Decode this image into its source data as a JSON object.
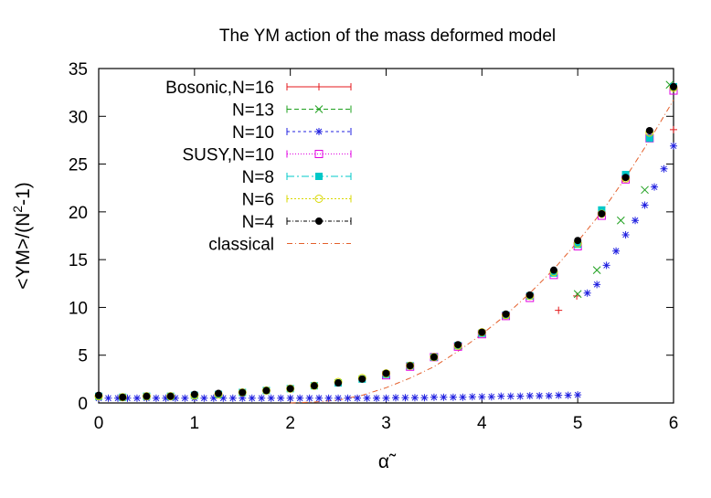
{
  "chart_data": {
    "type": "scatter",
    "title": "The YM action of the mass deformed model",
    "xlabel": "α̃",
    "ylabel_parts": {
      "main": "<YM>/(N",
      "sup": "2",
      "tail": "-1)"
    },
    "xlim": [
      0,
      6
    ],
    "ylim": [
      0,
      35
    ],
    "xticks": [
      "0",
      "1",
      "2",
      "3",
      "4",
      "5",
      "6"
    ],
    "yticks": [
      "0",
      "5",
      "10",
      "15",
      "20",
      "25",
      "30",
      "35"
    ],
    "grid": false,
    "legend_position": "top-left",
    "series": [
      {
        "name": "Bosonic,N=16",
        "color": "#e41a1c",
        "marker": "plus",
        "style": "points",
        "x": [
          4.8,
          4.99,
          6.0
        ],
        "y": [
          9.7,
          11.2,
          28.6
        ]
      },
      {
        "name": "N=13",
        "color": "#1ea01e",
        "marker": "cross",
        "style": "points",
        "x": [
          5.0,
          5.2,
          5.45,
          5.7,
          5.96
        ],
        "y": [
          11.4,
          13.9,
          19.1,
          22.3,
          33.3
        ]
      },
      {
        "name": "N=10",
        "color": "#2020e0",
        "marker": "star",
        "style": "points",
        "x": [
          0.0,
          0.1,
          0.2,
          0.3,
          0.4,
          0.5,
          0.6,
          0.7,
          0.8,
          0.9,
          1.0,
          1.1,
          1.2,
          1.3,
          1.4,
          1.5,
          1.6,
          1.7,
          1.8,
          1.9,
          2.0,
          2.1,
          2.2,
          2.3,
          2.4,
          2.5,
          2.6,
          2.7,
          2.8,
          2.9,
          3.0,
          3.1,
          3.2,
          3.3,
          3.4,
          3.5,
          3.6,
          3.7,
          3.8,
          3.9,
          4.0,
          4.1,
          4.2,
          4.3,
          4.4,
          4.5,
          4.6,
          4.7,
          4.8,
          4.9,
          5.0,
          5.1,
          5.2,
          5.3,
          5.4,
          5.5,
          5.6,
          5.7,
          5.8,
          5.9,
          6.0
        ],
        "y": [
          0.5,
          0.5,
          0.5,
          0.5,
          0.5,
          0.5,
          0.5,
          0.5,
          0.5,
          0.5,
          0.5,
          0.5,
          0.5,
          0.5,
          0.5,
          0.5,
          0.5,
          0.5,
          0.5,
          0.5,
          0.5,
          0.5,
          0.5,
          0.5,
          0.5,
          0.5,
          0.5,
          0.5,
          0.5,
          0.5,
          0.5,
          0.55,
          0.55,
          0.55,
          0.55,
          0.6,
          0.6,
          0.6,
          0.6,
          0.65,
          0.65,
          0.65,
          0.7,
          0.7,
          0.7,
          0.75,
          0.75,
          0.75,
          0.8,
          0.8,
          0.85,
          11.5,
          12.4,
          14.4,
          15.9,
          17.6,
          19.1,
          20.7,
          22.6,
          24.5,
          26.9
        ]
      },
      {
        "name": "SUSY,N=10",
        "color": "#e000e0",
        "marker": "square",
        "style": "points",
        "x": [
          3.0,
          3.25,
          3.5,
          3.75,
          4.0,
          4.25,
          4.5,
          4.75,
          5.0,
          5.25,
          5.5,
          5.75,
          6.0
        ],
        "y": [
          2.9,
          3.8,
          4.8,
          5.9,
          7.2,
          9.1,
          11.0,
          13.4,
          16.4,
          19.6,
          23.4,
          27.7,
          32.7
        ]
      },
      {
        "name": "N=8",
        "color": "#00c8c8",
        "marker": "filled-square",
        "style": "points",
        "x": [
          0.0,
          0.25,
          0.5,
          0.75,
          1.0,
          1.25,
          1.5,
          1.75,
          2.0,
          2.25,
          2.5,
          2.75,
          3.0,
          3.25,
          3.5,
          3.75,
          4.0,
          4.25,
          4.5,
          4.75,
          5.0,
          5.25,
          5.5,
          5.75,
          6.0
        ],
        "y": [
          0.7,
          0.6,
          0.7,
          0.7,
          0.8,
          0.9,
          1.1,
          1.3,
          1.5,
          1.8,
          2.1,
          2.5,
          3.0,
          3.9,
          4.8,
          6.0,
          7.3,
          9.2,
          11.2,
          13.6,
          16.6,
          20.2,
          23.9,
          27.7,
          33.1
        ]
      },
      {
        "name": "N=6",
        "color": "#d8d800",
        "marker": "circle",
        "style": "points",
        "x": [
          0.0,
          0.25,
          0.5,
          0.75,
          1.0,
          1.25,
          1.5,
          1.75,
          2.0,
          2.25,
          2.5,
          2.75,
          3.0,
          3.25,
          3.5,
          3.75,
          4.0,
          4.25,
          4.5,
          4.75,
          5.0,
          5.25,
          5.5,
          5.75,
          6.0
        ],
        "y": [
          0.7,
          0.6,
          0.7,
          0.7,
          0.8,
          0.9,
          1.1,
          1.3,
          1.5,
          1.8,
          2.2,
          2.6,
          3.1,
          3.9,
          4.8,
          6.0,
          7.4,
          9.2,
          11.2,
          13.7,
          16.7,
          19.8,
          23.5,
          28.3,
          33.0
        ]
      },
      {
        "name": "N=4",
        "color": "#000000",
        "marker": "dot",
        "style": "points",
        "x": [
          0.0,
          0.25,
          0.5,
          0.75,
          1.0,
          1.25,
          1.5,
          1.75,
          2.0,
          2.25,
          2.5,
          2.75,
          3.0,
          3.25,
          3.5,
          3.75,
          4.0,
          4.25,
          4.5,
          4.75,
          5.0,
          5.25,
          5.5,
          5.75,
          6.0
        ],
        "y": [
          0.8,
          0.6,
          0.7,
          0.7,
          0.9,
          1.0,
          1.1,
          1.3,
          1.5,
          1.8,
          2.1,
          2.5,
          3.1,
          3.9,
          4.8,
          6.1,
          7.4,
          9.3,
          11.3,
          13.9,
          17.0,
          19.8,
          23.6,
          28.5,
          33.1
        ]
      },
      {
        "name": "classical",
        "color": "#e4602c",
        "marker": "none",
        "style": "dashdot",
        "x": [
          2.0,
          2.25,
          2.5,
          2.75,
          3.0,
          3.25,
          3.5,
          3.75,
          4.0,
          4.25,
          4.5,
          4.75,
          5.0,
          5.25,
          5.5,
          5.75,
          6.0
        ],
        "y": [
          0.0,
          0.1,
          0.3,
          0.8,
          1.6,
          2.6,
          3.8,
          5.4,
          7.2,
          9.2,
          11.5,
          14.0,
          16.9,
          20.0,
          23.6,
          27.5,
          31.7
        ]
      }
    ]
  }
}
